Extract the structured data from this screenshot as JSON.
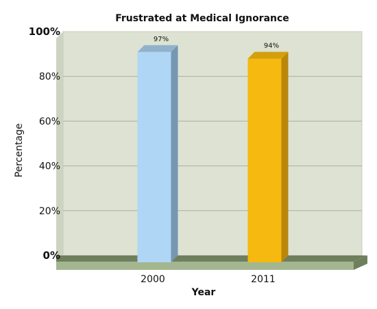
{
  "chart_data": {
    "type": "bar",
    "title": "Frustrated at Medical Ignorance",
    "xlabel": "Year",
    "ylabel": "Percentage",
    "categories": [
      "2000",
      "2011"
    ],
    "values": [
      97,
      94
    ],
    "data_labels": [
      "97%",
      "94%"
    ],
    "ylim": [
      0,
      100
    ],
    "yticks": [
      0,
      20,
      40,
      60,
      80,
      100
    ],
    "ytick_labels": [
      "0%",
      "20%",
      "40%",
      "60%",
      "80%",
      "100%"
    ],
    "grid": true,
    "legend": "none",
    "colors": {
      "plot_back": "#dde2d2",
      "floor": "#a3b68f",
      "floor_shadow": "#6f7f5e",
      "grid": "#a9b0a0",
      "bars": [
        {
          "front": "#b0d6f5",
          "side": "#7697b1",
          "top": "#91b2cc"
        },
        {
          "front": "#f5b90f",
          "side": "#b98709",
          "top": "#d49f0c"
        }
      ]
    }
  }
}
